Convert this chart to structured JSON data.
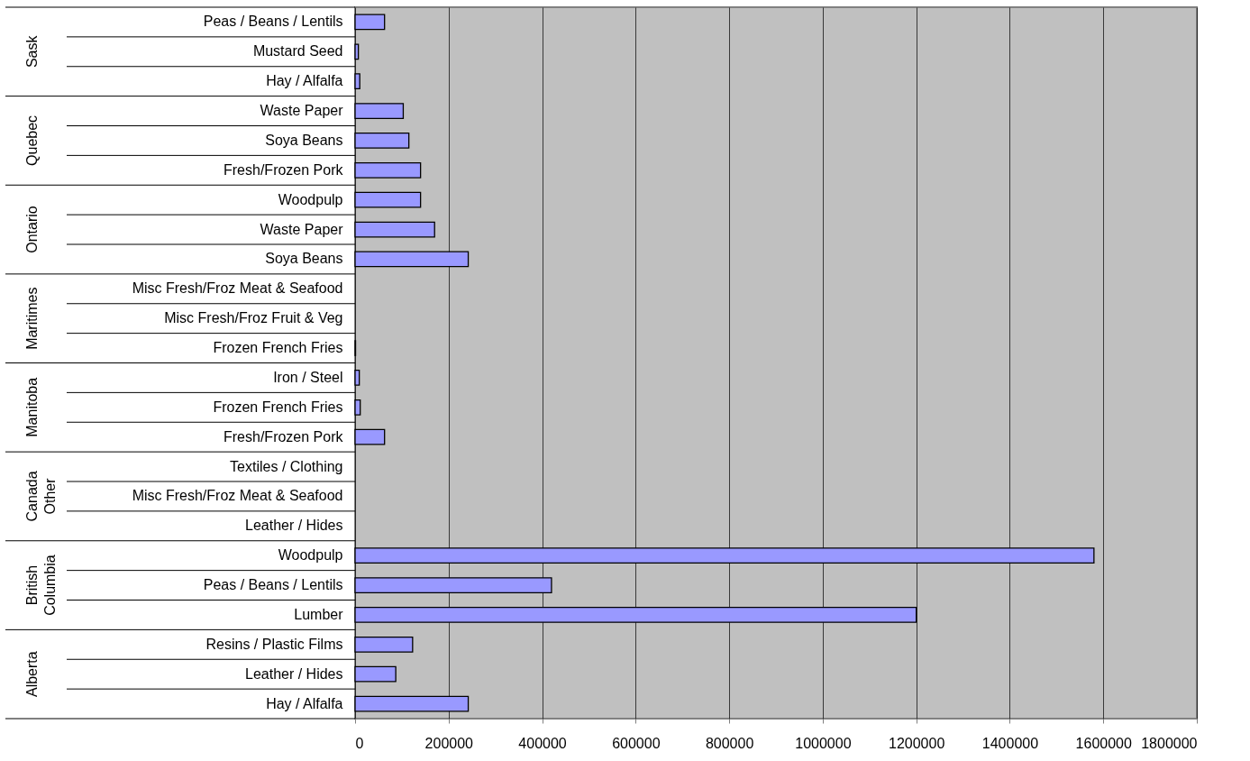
{
  "chart_data": {
    "type": "bar",
    "orientation": "horizontal",
    "categories": [
      "Peas / Beans / Lentils",
      "Mustard Seed",
      "Hay / Alfalfa",
      "Waste Paper",
      "Soya Beans",
      "Fresh/Frozen Pork",
      "Woodpulp",
      "Waste Paper",
      "Soya Beans",
      "Misc Fresh/Froz Meat & Seafood",
      "Misc Fresh/Froz Fruit & Veg",
      "Frozen French Fries",
      "Iron / Steel",
      "Frozen French Fries",
      "Fresh/Frozen Pork",
      "Textiles / Clothing",
      "Misc Fresh/Froz Meat & Seafood",
      "Leather / Hides",
      "Woodpulp",
      "Peas / Beans / Lentils",
      "Lumber",
      "Resins / Plastic Films",
      "Leather / Hides",
      "Hay / Alfalfa"
    ],
    "values": [
      63000,
      7000,
      10000,
      103000,
      115000,
      140000,
      140000,
      170000,
      242000,
      null,
      null,
      1000,
      9000,
      11000,
      63000,
      null,
      null,
      null,
      1580000,
      420000,
      1200000,
      123000,
      87000,
      242000
    ],
    "color": "#9999ff",
    "annotations": [
      "Sask",
      "Quebec",
      "Ontario",
      "Maritimes",
      "Manitoba",
      "Canada Other",
      "British Columbia",
      "Alberta"
    ],
    "xlim": [
      0,
      1800000
    ],
    "xticks": [
      0,
      200000,
      400000,
      600000,
      800000,
      1000000,
      1200000,
      1400000,
      1600000,
      1800000
    ],
    "grid": "x"
  }
}
